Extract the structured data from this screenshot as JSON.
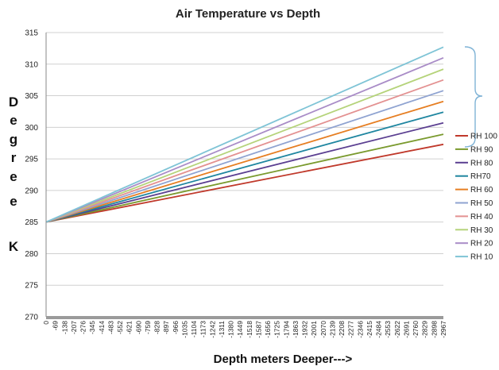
{
  "chart_data": {
    "type": "line",
    "title": "Air Temperature vs Depth",
    "xlabel": "Depth meters Deeper--->",
    "ylabel": "Degree K",
    "ylim": [
      270,
      315
    ],
    "yticks": [
      270,
      275,
      280,
      285,
      290,
      295,
      300,
      305,
      310,
      315
    ],
    "grid": "horizontal",
    "legend_position": "right",
    "x_tick_labels": [
      "0",
      "-69",
      "-138",
      "-207",
      "-276",
      "-345",
      "-414",
      "-483",
      "-552",
      "-621",
      "-690",
      "-759",
      "-828",
      "-897",
      "-966",
      "-1035",
      "-1104",
      "-1173",
      "-1242",
      "-1311",
      "-1380",
      "-1449",
      "-1518",
      "-1587",
      "-1656",
      "-1725",
      "-1794",
      "-1863",
      "-1932",
      "-2001",
      "-2070",
      "-2139",
      "-2208",
      "-2277",
      "-2346",
      "-2415",
      "-2484",
      "-2553",
      "-2622",
      "-2691",
      "-2760",
      "-2829",
      "-2898",
      "-2967"
    ],
    "x": [
      0,
      -2967
    ],
    "series": [
      {
        "name": "RH 100",
        "color": "#c0392b",
        "values": [
          285,
          297.3
        ]
      },
      {
        "name": "RH 90",
        "color": "#7a9a2e",
        "values": [
          285,
          298.9
        ]
      },
      {
        "name": "RH 80",
        "color": "#5b3f91",
        "values": [
          285,
          300.7
        ]
      },
      {
        "name": "RH70",
        "color": "#1f86a0",
        "values": [
          285,
          302.4
        ]
      },
      {
        "name": "RH 60",
        "color": "#e67e22",
        "values": [
          285,
          304.1
        ]
      },
      {
        "name": "RH 50",
        "color": "#8fa3d1",
        "values": [
          285,
          305.8
        ]
      },
      {
        "name": "RH 40",
        "color": "#e39191",
        "values": [
          285,
          307.5
        ]
      },
      {
        "name": "RH 30",
        "color": "#b5d37a",
        "values": [
          285,
          309.2
        ]
      },
      {
        "name": "RH 20",
        "color": "#a98cc7",
        "values": [
          285,
          311.0
        ]
      },
      {
        "name": "RH 10",
        "color": "#7fc4d6",
        "values": [
          285,
          312.7
        ]
      }
    ]
  }
}
